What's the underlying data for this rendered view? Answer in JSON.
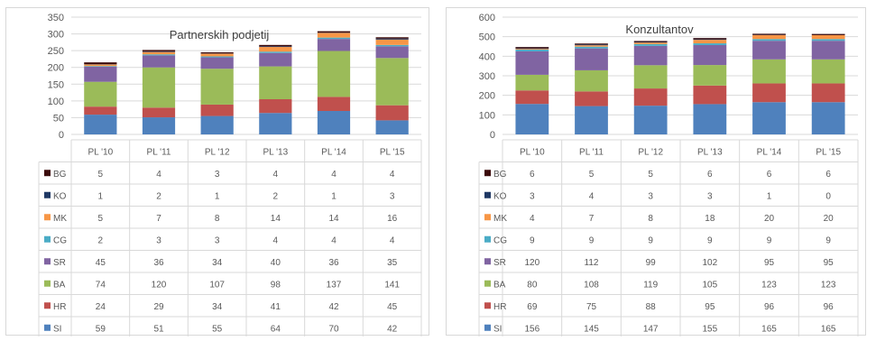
{
  "colors": {
    "SI": "#4f81bd",
    "HR": "#c0504d",
    "BA": "#9bbb59",
    "SR": "#8064a2",
    "CG": "#4bacc6",
    "MK": "#f79646",
    "KO": "#1f3864",
    "BG": "#3b0a0a"
  },
  "chart_data": [
    {
      "type": "bar",
      "stacked": true,
      "title": "Partnerskih podjetij",
      "ylim": [
        0,
        350
      ],
      "yticks": [
        "350",
        "300",
        "250",
        "200",
        "150",
        "100",
        "50",
        "0"
      ],
      "categories": [
        "PL '10",
        "PL '11",
        "PL '12",
        "PL '13",
        "PL '14",
        "PL '15"
      ],
      "grid": true,
      "legend": "data-table",
      "series": [
        {
          "name": "BG",
          "values": [
            5,
            4,
            3,
            4,
            4,
            4
          ]
        },
        {
          "name": "KO",
          "values": [
            1,
            2,
            1,
            2,
            1,
            3
          ]
        },
        {
          "name": "MK",
          "values": [
            5,
            7,
            8,
            14,
            14,
            16
          ]
        },
        {
          "name": "CG",
          "values": [
            2,
            3,
            3,
            4,
            4,
            4
          ]
        },
        {
          "name": "SR",
          "values": [
            45,
            36,
            34,
            40,
            36,
            35
          ]
        },
        {
          "name": "BA",
          "values": [
            74,
            120,
            107,
            98,
            137,
            141
          ]
        },
        {
          "name": "HR",
          "values": [
            24,
            29,
            34,
            41,
            42,
            45
          ]
        },
        {
          "name": "SI",
          "values": [
            59,
            51,
            55,
            64,
            70,
            42
          ]
        }
      ]
    },
    {
      "type": "bar",
      "stacked": true,
      "title": "Konzultantov",
      "ylim": [
        0,
        600
      ],
      "yticks": [
        "600",
        "500",
        "400",
        "300",
        "200",
        "100",
        "0"
      ],
      "categories": [
        "PL '10",
        "PL '11",
        "PL '12",
        "PL '13",
        "PL '14",
        "PL '15"
      ],
      "grid": true,
      "legend": "data-table",
      "series": [
        {
          "name": "BG",
          "values": [
            6,
            5,
            5,
            6,
            6,
            6
          ]
        },
        {
          "name": "KO",
          "values": [
            3,
            4,
            3,
            3,
            1,
            0
          ]
        },
        {
          "name": "MK",
          "values": [
            4,
            7,
            8,
            18,
            20,
            20
          ]
        },
        {
          "name": "CG",
          "values": [
            9,
            9,
            9,
            9,
            9,
            9
          ]
        },
        {
          "name": "SR",
          "values": [
            120,
            112,
            99,
            102,
            95,
            95
          ]
        },
        {
          "name": "BA",
          "values": [
            80,
            108,
            119,
            105,
            123,
            123
          ]
        },
        {
          "name": "HR",
          "values": [
            69,
            75,
            88,
            95,
            96,
            96
          ]
        },
        {
          "name": "SI",
          "values": [
            156,
            145,
            147,
            155,
            165,
            165
          ]
        }
      ]
    }
  ]
}
